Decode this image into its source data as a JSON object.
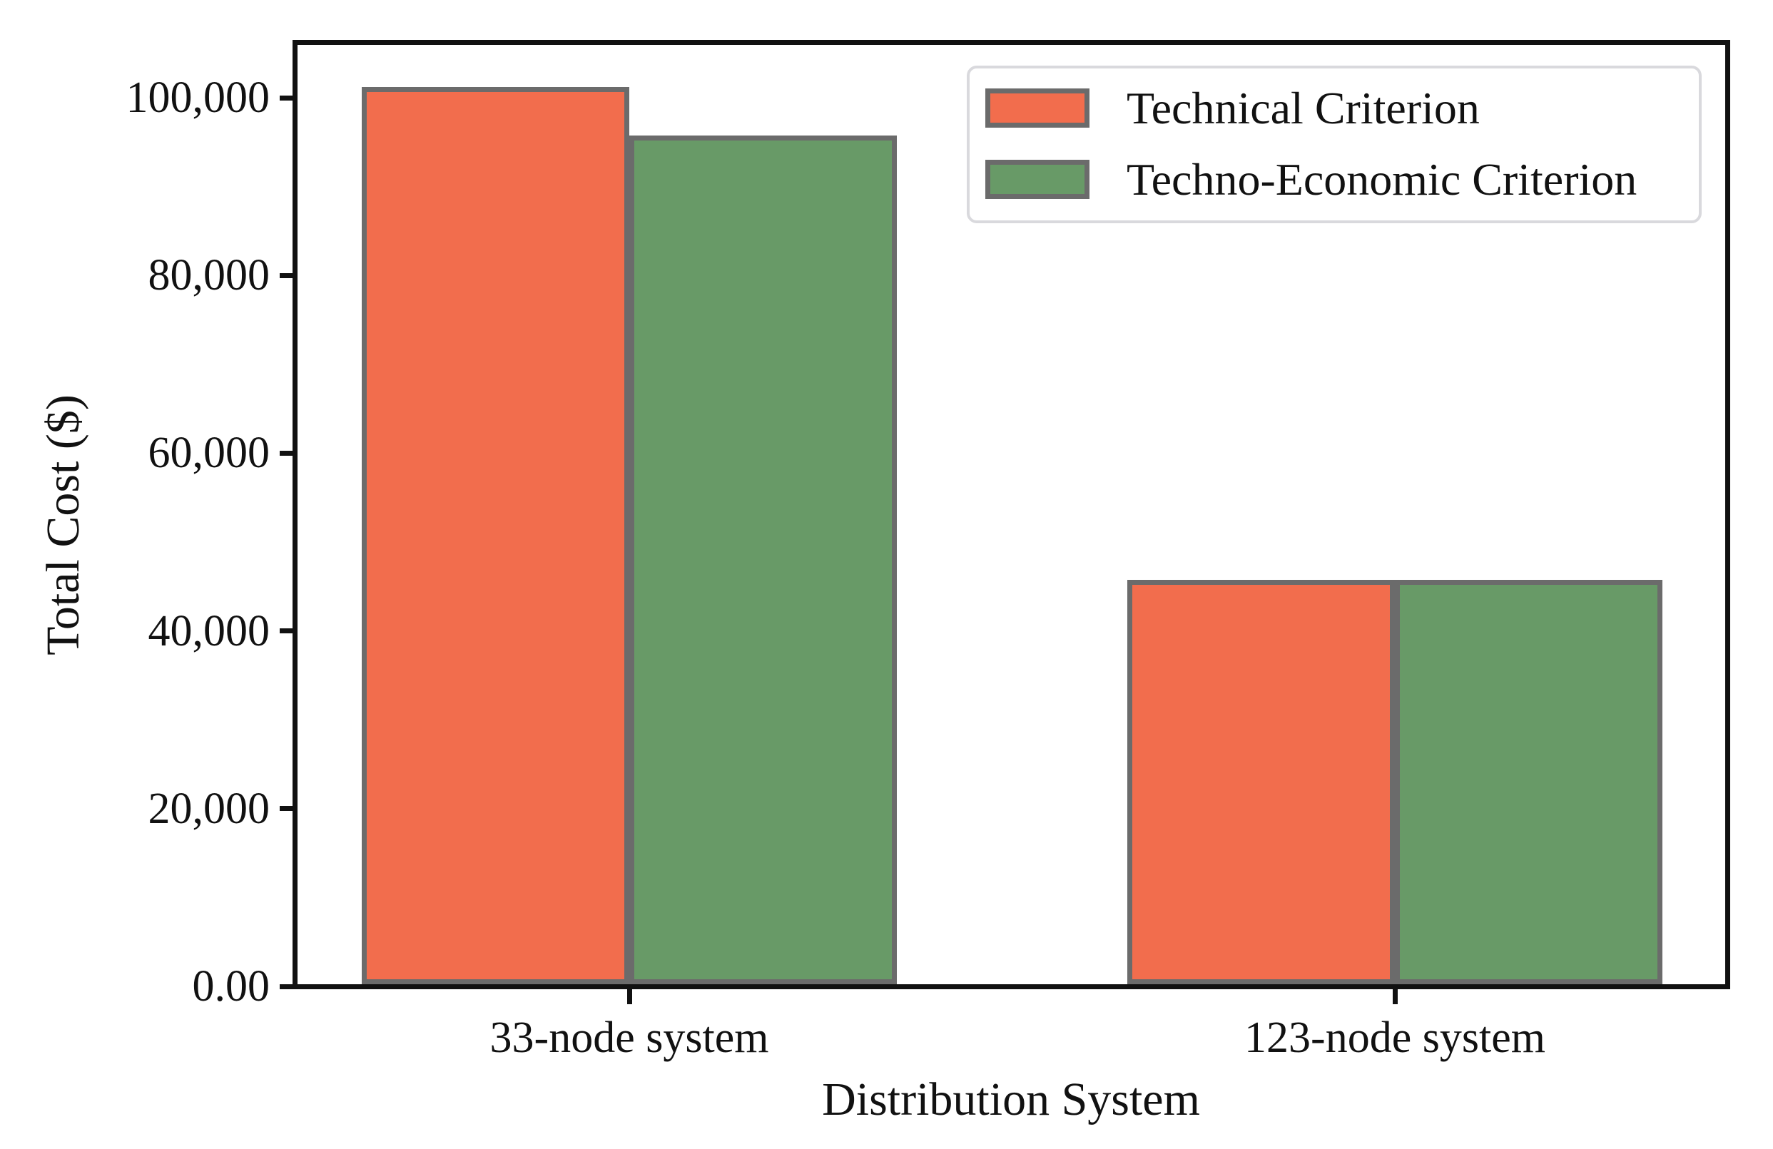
{
  "figure": {
    "background": "#ffffff",
    "text_color": "#111111"
  },
  "chart_data": {
    "type": "bar",
    "title": "",
    "xlabel": "Distribution System",
    "ylabel": "Total Cost ($)",
    "categories": [
      "33-node system",
      "123-node system"
    ],
    "series": [
      {
        "name": "Technical Criterion",
        "color": "#f26d4d",
        "values": [
          101000,
          45500
        ]
      },
      {
        "name": "Techno-Economic Criterion",
        "color": "#689a67",
        "values": [
          95500,
          45500
        ]
      }
    ],
    "y_ticks": [
      {
        "value": 0,
        "label": "0.00"
      },
      {
        "value": 20000,
        "label": "20,000"
      },
      {
        "value": 40000,
        "label": "40,000"
      },
      {
        "value": 60000,
        "label": "60,000"
      },
      {
        "value": 80000,
        "label": "80,000"
      },
      {
        "value": 100000,
        "label": "100,000"
      }
    ],
    "ylim": [
      0,
      106500
    ],
    "grid": false,
    "legend_position": "upper right",
    "bar_edge_color": "#6b6b6b",
    "legend_border_color": "#d9d9dd"
  }
}
